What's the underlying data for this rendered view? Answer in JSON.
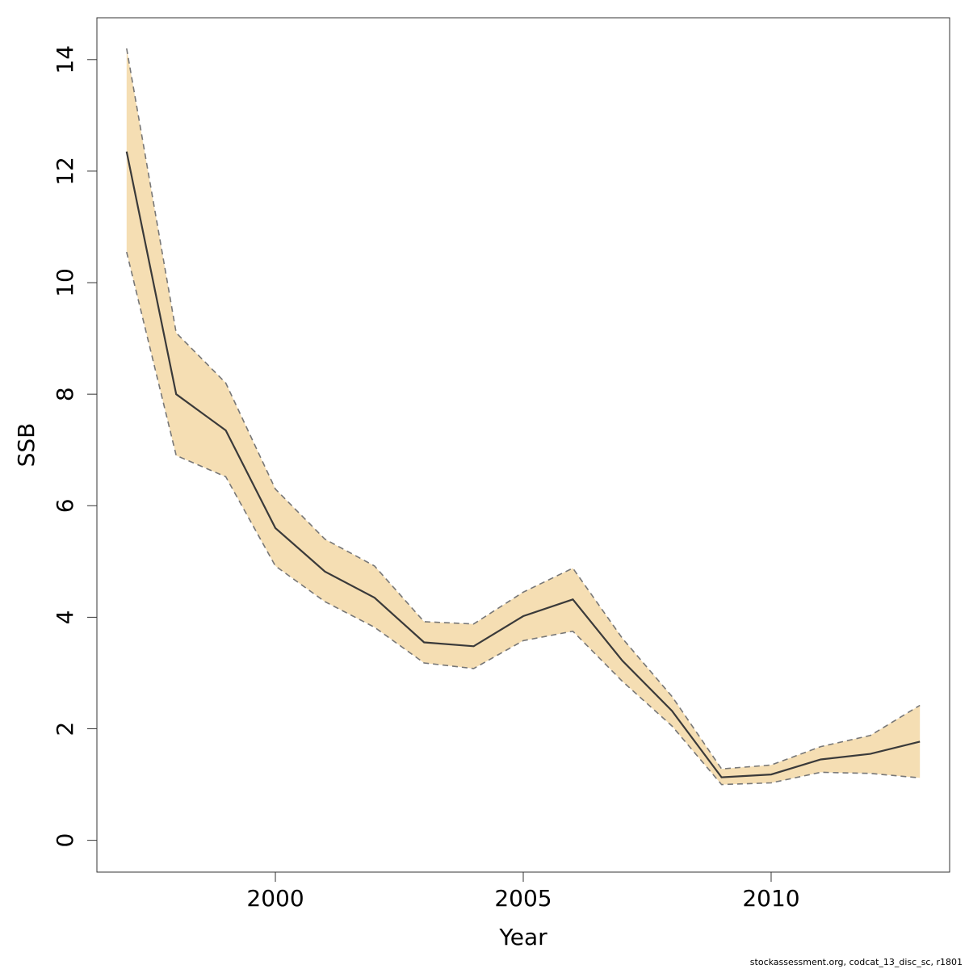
{
  "chart_data": {
    "type": "line",
    "title": "",
    "xlabel": "Year",
    "ylabel": "SSB",
    "xlim": [
      1996.4,
      2013.6
    ],
    "ylim": [
      -0.57,
      14.75
    ],
    "x_ticks": [
      2000,
      2005,
      2010
    ],
    "x_tick_labels": [
      "2000",
      "2005",
      "2010"
    ],
    "y_ticks": [
      0,
      2,
      4,
      6,
      8,
      10,
      12,
      14
    ],
    "y_tick_labels": [
      "0",
      "2",
      "4",
      "6",
      "8",
      "10",
      "12",
      "14"
    ],
    "grid": false,
    "legend": "none",
    "x": [
      1997,
      1998,
      1999,
      2000,
      2001,
      2002,
      2003,
      2004,
      2005,
      2006,
      2007,
      2008,
      2009,
      2010,
      2011,
      2012,
      2013
    ],
    "series": [
      {
        "role": "estimate",
        "values": [
          12.35,
          8.0,
          7.35,
          5.6,
          4.82,
          4.35,
          3.55,
          3.48,
          4.02,
          4.32,
          3.22,
          2.32,
          1.13,
          1.18,
          1.45,
          1.55,
          1.77
        ]
      },
      {
        "role": "upper",
        "values": [
          14.2,
          9.1,
          8.2,
          6.3,
          5.4,
          4.92,
          3.92,
          3.88,
          4.45,
          4.88,
          3.62,
          2.58,
          1.28,
          1.35,
          1.68,
          1.88,
          2.42
        ]
      },
      {
        "role": "lower",
        "values": [
          10.55,
          6.9,
          6.52,
          4.92,
          4.28,
          3.82,
          3.18,
          3.08,
          3.58,
          3.75,
          2.85,
          2.05,
          1.0,
          1.03,
          1.22,
          1.2,
          1.12
        ]
      }
    ],
    "colors": {
      "band": "#f5deb3",
      "line": "#3a3a3a",
      "bounds": "#777777",
      "axis": "#333333"
    }
  },
  "footer": {
    "text": "stockassessment.org, codcat_13_disc_sc, r1801"
  }
}
